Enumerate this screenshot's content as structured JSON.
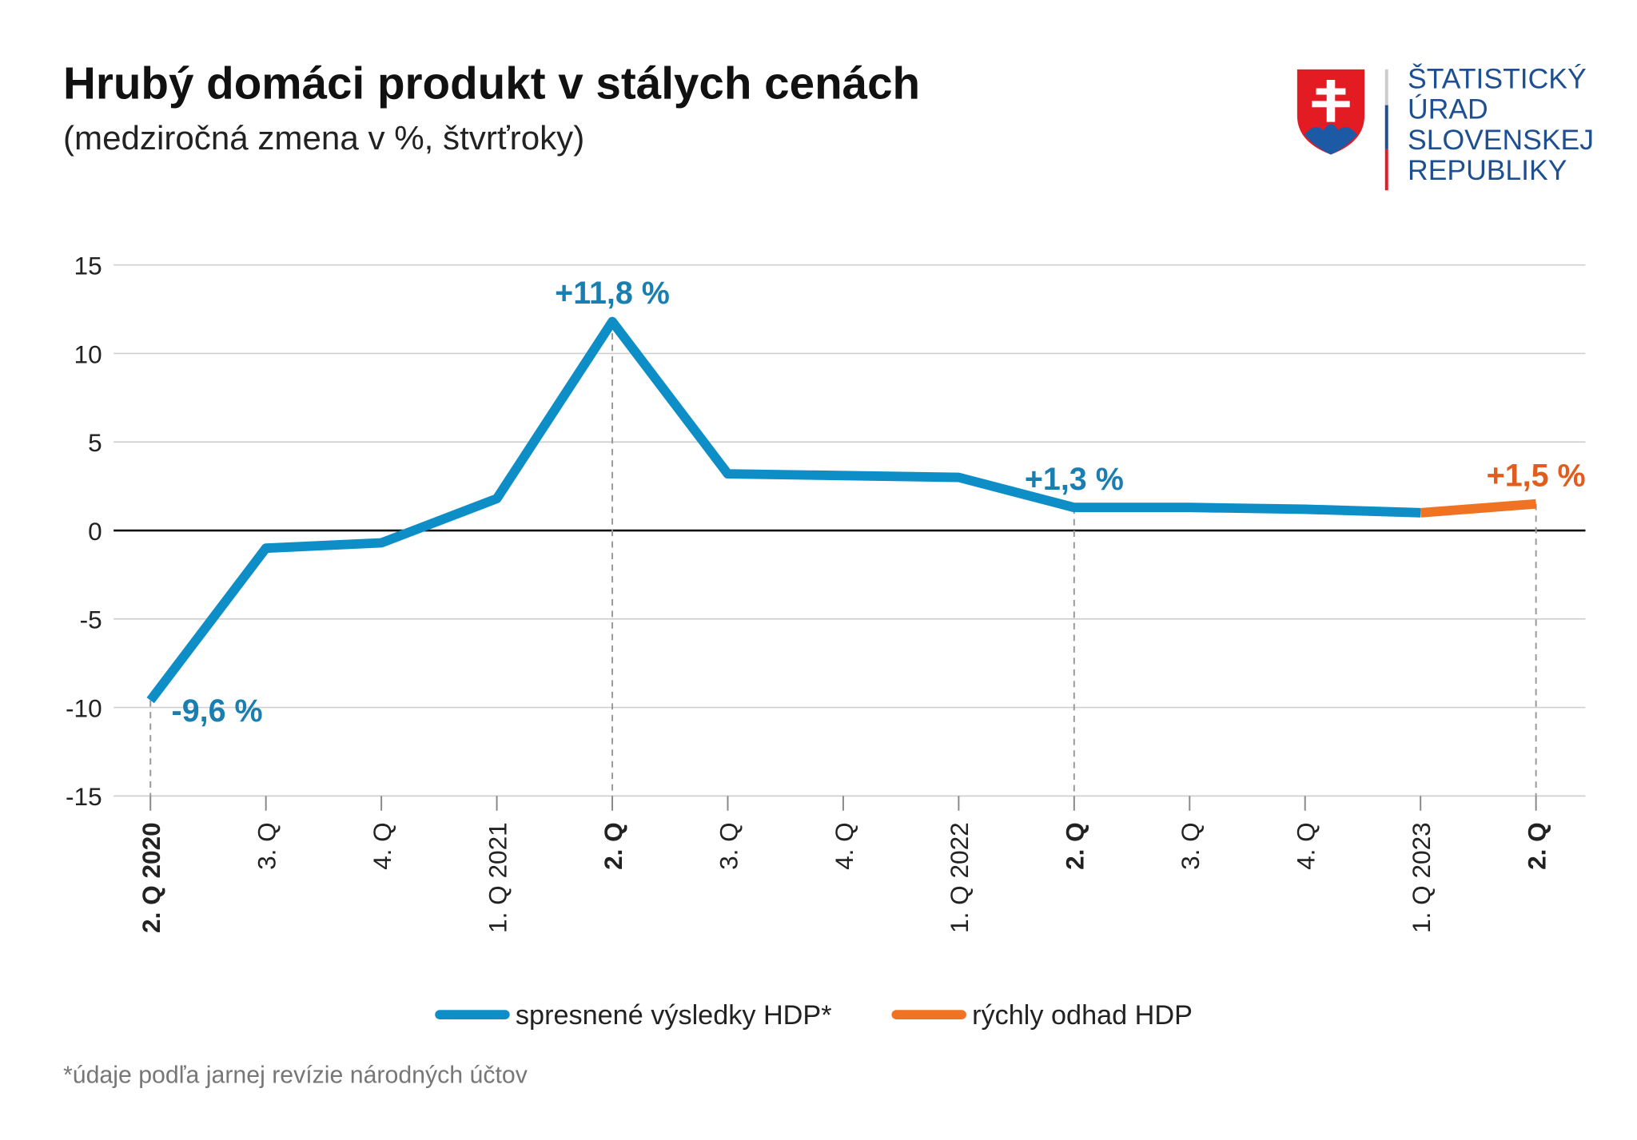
{
  "chart_data": {
    "type": "line",
    "title": "Hrubý domáci produkt v stálych cenách",
    "subtitle": "(medziročná zmena v %, štvrťroky)",
    "categories": [
      "2. Q 2020",
      "3. Q",
      "4. Q",
      "1. Q 2021",
      "2. Q",
      "3. Q",
      "4. Q",
      "1. Q 2022",
      "2. Q",
      "3. Q",
      "4. Q",
      "1. Q 2023",
      "2. Q"
    ],
    "series": [
      {
        "name": "spresnené výsledky HDP*",
        "color": "#0e8ec7",
        "label_color": "#1a7fb0",
        "values": [
          -9.6,
          -1.0,
          -0.7,
          1.8,
          11.8,
          3.2,
          3.1,
          3.0,
          1.3,
          1.3,
          1.2,
          1.0,
          null
        ],
        "value_labels": [
          "-9,6 %",
          null,
          null,
          null,
          "+11,8 %",
          null,
          null,
          null,
          "+1,3 %",
          null,
          null,
          null,
          null
        ]
      },
      {
        "name": "rýchly odhad HDP",
        "color": "#f07323",
        "label_color": "#e05d1d",
        "values": [
          null,
          null,
          null,
          null,
          null,
          null,
          null,
          null,
          null,
          null,
          null,
          1.0,
          1.5
        ],
        "value_labels": [
          null,
          null,
          null,
          null,
          null,
          null,
          null,
          null,
          null,
          null,
          null,
          null,
          "+1,5 %"
        ]
      }
    ],
    "ylim": [
      -15,
      15
    ],
    "yticks": [
      -15,
      -10,
      -5,
      0,
      5,
      10,
      15
    ],
    "grid": true,
    "legend": "bottom",
    "footnote": "*údaje podľa jarnej revízie národných účtov"
  },
  "logo": {
    "lines": [
      "ŠTATISTICKÝ",
      "ÚRAD",
      "SLOVENSKEJ",
      "REPUBLIKY"
    ]
  }
}
